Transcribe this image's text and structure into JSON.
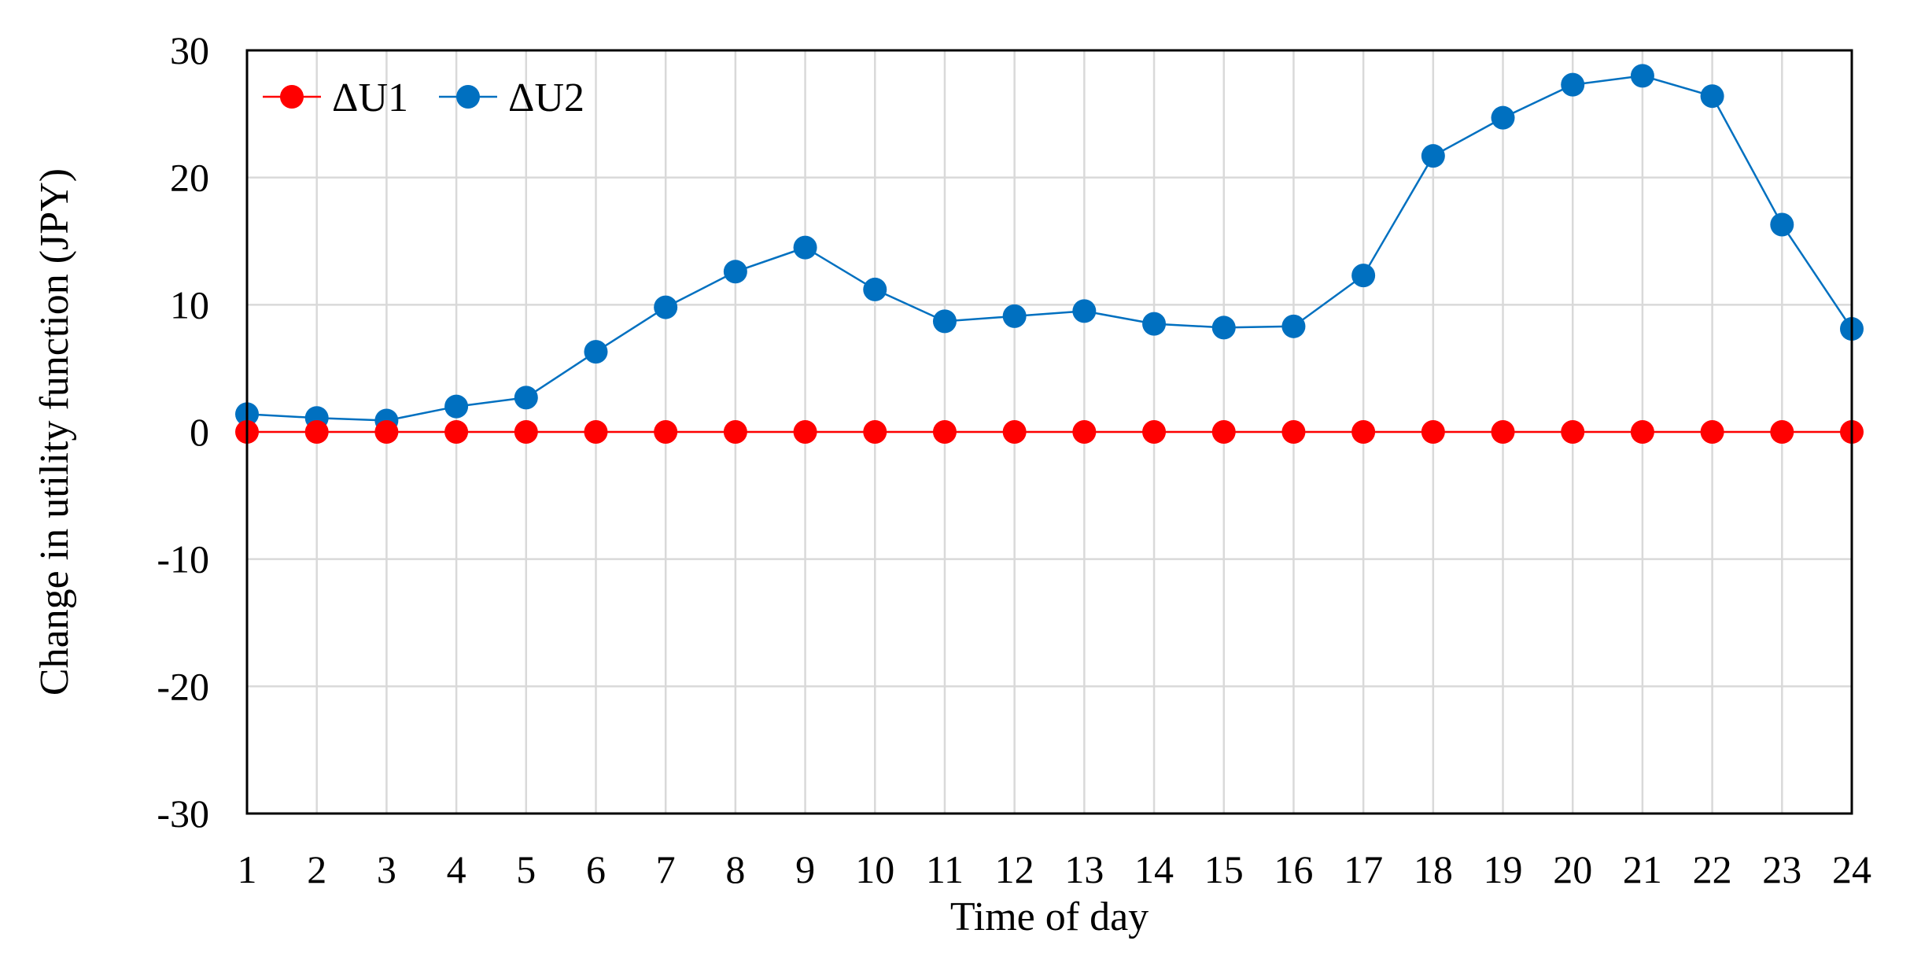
{
  "chart_data": {
    "type": "line",
    "xlabel": "Time of day",
    "ylabel": "Change in utility function (JPY)",
    "categories": [
      "1",
      "2",
      "3",
      "4",
      "5",
      "6",
      "7",
      "8",
      "9",
      "10",
      "11",
      "12",
      "13",
      "14",
      "15",
      "16",
      "17",
      "18",
      "19",
      "20",
      "21",
      "22",
      "23",
      "24"
    ],
    "ylim": [
      -30,
      30
    ],
    "yticks": [
      -30,
      -20,
      -10,
      0,
      10,
      20,
      30
    ],
    "yticklabels": [
      "-30",
      "-20",
      "-10",
      "0",
      "10",
      "20",
      "30"
    ],
    "grid": true,
    "legend_position": "top-left",
    "series": [
      {
        "name": "ΔU1",
        "color": "#ff0000",
        "values": [
          0,
          0,
          0,
          0,
          0,
          0,
          0,
          0,
          0,
          0,
          0,
          0,
          0,
          0,
          0,
          0,
          0,
          0,
          0,
          0,
          0,
          0,
          0,
          0
        ]
      },
      {
        "name": "ΔU2",
        "color": "#0070c0",
        "values": [
          1.4,
          1.1,
          0.9,
          2.0,
          2.7,
          6.3,
          9.8,
          12.6,
          14.5,
          11.2,
          8.7,
          9.1,
          9.5,
          8.5,
          8.2,
          8.3,
          12.3,
          21.7,
          24.7,
          27.3,
          28.0,
          26.4,
          16.3,
          8.1
        ]
      }
    ]
  }
}
